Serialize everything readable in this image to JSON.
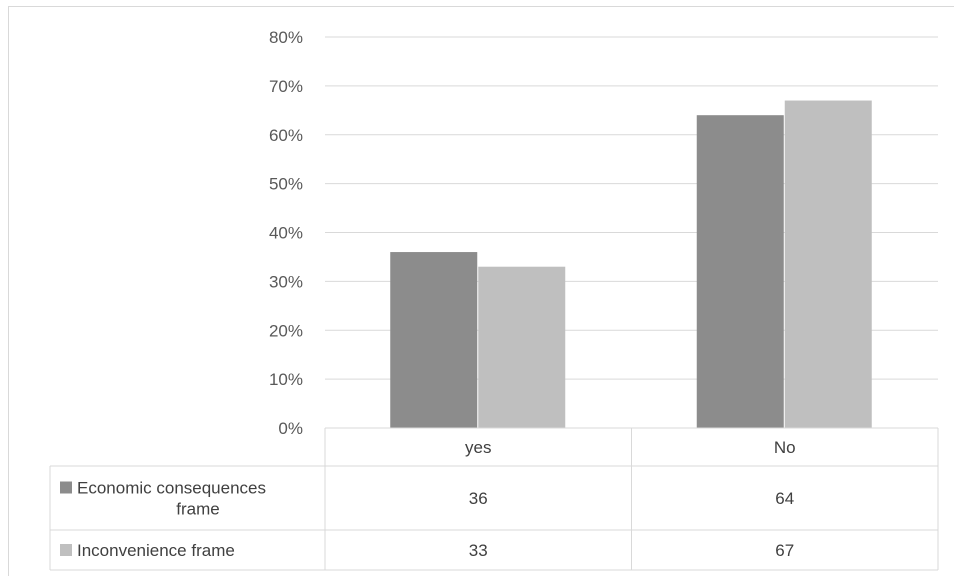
{
  "chart_data": {
    "type": "bar",
    "title": "",
    "xlabel": "",
    "ylabel": "",
    "categories": [
      "yes",
      "No"
    ],
    "ylim": [
      0,
      80
    ],
    "yticks": [
      "0%",
      "10%",
      "20%",
      "30%",
      "40%",
      "50%",
      "60%",
      "70%",
      "80%"
    ],
    "grid": true,
    "legend": "data-table",
    "series": [
      {
        "name": "Economic consequences frame",
        "values": [
          36,
          64
        ],
        "color": "#8c8c8c"
      },
      {
        "name": "Inconvenience frame",
        "values": [
          33,
          67
        ],
        "color": "#bfbfbf"
      }
    ],
    "table": {
      "rows": [
        {
          "label_lines": [
            "Economic consequences",
            "frame"
          ],
          "cells": [
            "36",
            "64"
          ]
        },
        {
          "label_lines": [
            "Inconvenience frame"
          ],
          "cells": [
            "33",
            "67"
          ]
        }
      ]
    }
  }
}
